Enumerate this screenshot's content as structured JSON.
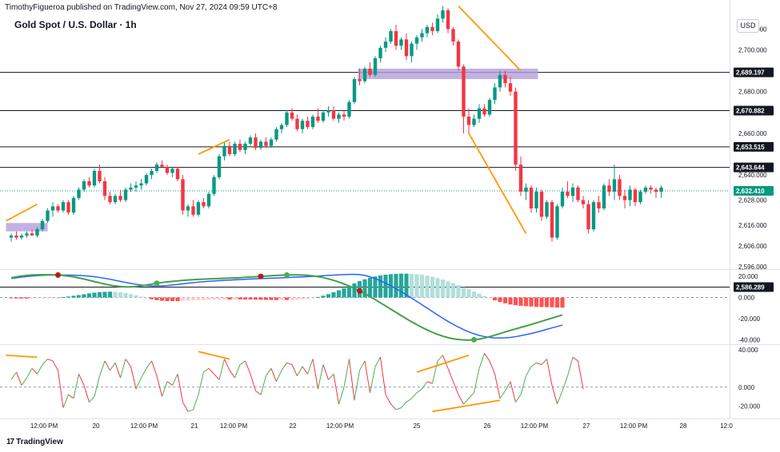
{
  "header": {
    "attribution": "TimothyFigueroa published on TradingView.com, Nov 27, 2024 09:59 UTC+8",
    "symbol_title": "Gold Spot / U.S. Dollar · 1h",
    "currency": "USD"
  },
  "footer": {
    "logo_text": "TradingView",
    "logo_mark": "17"
  },
  "colors": {
    "up": "#089981",
    "down": "#f23645",
    "orange": "#ff9800",
    "zone": "#b39ddb",
    "macd_fast": "#2962ff",
    "macd_slow": "#43a047",
    "macd_slow_down": "#b71c1c",
    "rsi_up": "#4caf50",
    "rsi_down": "#f23645"
  },
  "chart_data": [
    {
      "type": "candlestick",
      "title": "Gold Spot / U.S. Dollar · 1h",
      "ylim": [
        2588,
        2722
      ],
      "x_ticks": [
        "12:00 PM",
        "20",
        "12:00 PM",
        "21",
        "12:00 PM",
        "22",
        "12:00 PM",
        "25",
        "26",
        "12:00 PM",
        "27",
        "12:00 PM",
        "28",
        "12:0"
      ],
      "y_ticks": [
        "2,710.000",
        "2,700.000",
        "2,680.000",
        "2,660.000",
        "2,640.000",
        "2,628.000",
        "2,616.000",
        "2,606.000",
        "2,596.000"
      ],
      "horizontal_levels": [
        "2,689.197",
        "2,670.882",
        "2,653.515",
        "2,643.644",
        "2,586.289"
      ],
      "last_price": "2,632.410",
      "ohlc": [
        [
          2610,
          2612,
          2608,
          2611
        ],
        [
          2611,
          2613,
          2609,
          2610
        ],
        [
          2610,
          2612,
          2609,
          2611
        ],
        [
          2611,
          2613,
          2610,
          2612
        ],
        [
          2612,
          2614,
          2611,
          2611
        ],
        [
          2611,
          2615,
          2610,
          2614
        ],
        [
          2614,
          2619,
          2613,
          2618
        ],
        [
          2618,
          2624,
          2617,
          2623
        ],
        [
          2623,
          2627,
          2620,
          2625
        ],
        [
          2625,
          2626,
          2622,
          2623
        ],
        [
          2623,
          2628,
          2622,
          2627
        ],
        [
          2627,
          2628,
          2621,
          2622
        ],
        [
          2622,
          2630,
          2621,
          2629
        ],
        [
          2629,
          2634,
          2628,
          2633
        ],
        [
          2633,
          2638,
          2632,
          2637
        ],
        [
          2637,
          2639,
          2634,
          2635
        ],
        [
          2635,
          2643,
          2634,
          2642
        ],
        [
          2642,
          2645,
          2636,
          2637
        ],
        [
          2637,
          2639,
          2628,
          2630
        ],
        [
          2630,
          2632,
          2626,
          2627
        ],
        [
          2627,
          2631,
          2626,
          2630
        ],
        [
          2630,
          2633,
          2627,
          2628
        ],
        [
          2628,
          2634,
          2627,
          2633
        ],
        [
          2633,
          2636,
          2632,
          2634
        ],
        [
          2634,
          2637,
          2632,
          2635
        ],
        [
          2635,
          2638,
          2633,
          2636
        ],
        [
          2636,
          2641,
          2635,
          2640
        ],
        [
          2640,
          2643,
          2638,
          2642
        ],
        [
          2642,
          2646,
          2641,
          2645
        ],
        [
          2645,
          2647,
          2644,
          2644
        ],
        [
          2644,
          2645,
          2640,
          2641
        ],
        [
          2641,
          2644,
          2639,
          2643
        ],
        [
          2643,
          2644,
          2637,
          2638
        ],
        [
          2638,
          2640,
          2621,
          2623
        ],
        [
          2623,
          2626,
          2620,
          2625
        ],
        [
          2625,
          2628,
          2620,
          2621
        ],
        [
          2621,
          2628,
          2620,
          2627
        ],
        [
          2627,
          2629,
          2624,
          2625
        ],
        [
          2625,
          2632,
          2624,
          2631
        ],
        [
          2631,
          2640,
          2630,
          2639
        ],
        [
          2639,
          2650,
          2638,
          2649
        ],
        [
          2649,
          2656,
          2647,
          2654
        ],
        [
          2654,
          2656,
          2649,
          2650
        ],
        [
          2650,
          2656,
          2649,
          2655
        ],
        [
          2655,
          2657,
          2651,
          2652
        ],
        [
          2652,
          2656,
          2650,
          2655
        ],
        [
          2655,
          2659,
          2654,
          2658
        ],
        [
          2658,
          2660,
          2652,
          2653
        ],
        [
          2653,
          2657,
          2652,
          2656
        ],
        [
          2656,
          2658,
          2653,
          2654
        ],
        [
          2654,
          2658,
          2653,
          2657
        ],
        [
          2657,
          2663,
          2656,
          2662
        ],
        [
          2662,
          2665,
          2660,
          2664
        ],
        [
          2664,
          2671,
          2663,
          2670
        ],
        [
          2670,
          2672,
          2666,
          2667
        ],
        [
          2667,
          2669,
          2661,
          2662
        ],
        [
          2662,
          2667,
          2660,
          2666
        ],
        [
          2666,
          2668,
          2662,
          2663
        ],
        [
          2663,
          2669,
          2662,
          2668
        ],
        [
          2668,
          2672,
          2665,
          2666
        ],
        [
          2666,
          2671,
          2665,
          2670
        ],
        [
          2670,
          2673,
          2668,
          2671
        ],
        [
          2671,
          2673,
          2666,
          2667
        ],
        [
          2667,
          2670,
          2665,
          2669
        ],
        [
          2669,
          2671,
          2666,
          2668
        ],
        [
          2668,
          2676,
          2667,
          2675
        ],
        [
          2675,
          2687,
          2674,
          2686
        ],
        [
          2686,
          2691,
          2683,
          2685
        ],
        [
          2685,
          2692,
          2684,
          2691
        ],
        [
          2691,
          2694,
          2687,
          2688
        ],
        [
          2688,
          2697,
          2687,
          2696
        ],
        [
          2696,
          2702,
          2694,
          2701
        ],
        [
          2701,
          2706,
          2699,
          2704
        ],
        [
          2704,
          2710,
          2703,
          2709
        ],
        [
          2709,
          2712,
          2700,
          2702
        ],
        [
          2702,
          2706,
          2700,
          2705
        ],
        [
          2705,
          2708,
          2695,
          2697
        ],
        [
          2697,
          2704,
          2694,
          2703
        ],
        [
          2703,
          2707,
          2700,
          2706
        ],
        [
          2706,
          2710,
          2704,
          2708
        ],
        [
          2708,
          2712,
          2706,
          2711
        ],
        [
          2711,
          2713,
          2707,
          2709
        ],
        [
          2709,
          2717,
          2708,
          2715
        ],
        [
          2715,
          2721,
          2713,
          2719
        ],
        [
          2719,
          2720,
          2708,
          2710
        ],
        [
          2710,
          2711,
          2702,
          2704
        ],
        [
          2704,
          2705,
          2690,
          2692
        ],
        [
          2692,
          2693,
          2660,
          2668
        ],
        [
          2668,
          2672,
          2660,
          2664
        ],
        [
          2664,
          2669,
          2663,
          2667
        ],
        [
          2667,
          2674,
          2665,
          2672
        ],
        [
          2672,
          2674,
          2668,
          2669
        ],
        [
          2669,
          2677,
          2668,
          2676
        ],
        [
          2676,
          2684,
          2674,
          2682
        ],
        [
          2682,
          2690,
          2680,
          2688
        ],
        [
          2688,
          2690,
          2682,
          2684
        ],
        [
          2684,
          2687,
          2678,
          2680
        ],
        [
          2680,
          2682,
          2642,
          2645
        ],
        [
          2645,
          2649,
          2630,
          2632
        ],
        [
          2632,
          2636,
          2628,
          2634
        ],
        [
          2634,
          2635,
          2622,
          2624
        ],
        [
          2624,
          2634,
          2622,
          2632
        ],
        [
          2632,
          2633,
          2618,
          2620
        ],
        [
          2620,
          2628,
          2619,
          2627
        ],
        [
          2627,
          2628,
          2608,
          2610
        ],
        [
          2610,
          2626,
          2609,
          2625
        ],
        [
          2625,
          2634,
          2624,
          2632
        ],
        [
          2632,
          2637,
          2629,
          2630
        ],
        [
          2630,
          2636,
          2627,
          2634
        ],
        [
          2634,
          2635,
          2627,
          2628
        ],
        [
          2628,
          2630,
          2624,
          2626
        ],
        [
          2626,
          2628,
          2612,
          2614
        ],
        [
          2614,
          2628,
          2613,
          2627
        ],
        [
          2627,
          2630,
          2622,
          2624
        ],
        [
          2624,
          2636,
          2623,
          2635
        ],
        [
          2635,
          2638,
          2630,
          2632
        ],
        [
          2632,
          2645,
          2628,
          2638
        ],
        [
          2638,
          2640,
          2628,
          2630
        ],
        [
          2630,
          2633,
          2624,
          2628
        ],
        [
          2628,
          2635,
          2625,
          2633
        ],
        [
          2633,
          2634,
          2625,
          2627
        ],
        [
          2627,
          2633,
          2626,
          2632
        ],
        [
          2632,
          2635,
          2631,
          2634
        ],
        [
          2634,
          2635,
          2631,
          2633
        ],
        [
          2633,
          2634,
          2629,
          2632
        ],
        [
          2632,
          2635,
          2629,
          2634
        ]
      ]
    },
    {
      "type": "macd",
      "y_ticks": [
        "20.000",
        "0.000",
        "-20.000",
        "-40.000"
      ],
      "ylim": [
        -44,
        26
      ],
      "fast": [
        18,
        18.6,
        19.2,
        19.8,
        20.3,
        20.6,
        20.9,
        21.1,
        21.2,
        21.2,
        21.2,
        21.1,
        21,
        20.8,
        20.5,
        20.1,
        19.6,
        18.9,
        18.1,
        17.2,
        16.2,
        15.2,
        14.2,
        13.3,
        12.5,
        11.8,
        11.3,
        11,
        10.9,
        11,
        11.3,
        11.8,
        12.3,
        12.9,
        13.5,
        14,
        14.5,
        14.9,
        15.3,
        15.6,
        15.9,
        16.2,
        16.4,
        16.7,
        16.9,
        17.2,
        17.4,
        17.6,
        17.8,
        18,
        18.2,
        18.4,
        18.6,
        18.8,
        19,
        19.2,
        19.4,
        19.7,
        19.9,
        20.2,
        20.5,
        20.8,
        21.1,
        21.4,
        21.6,
        21.8,
        21.9,
        21.6,
        20.8,
        19.5,
        17.8,
        15.8,
        13.5,
        11,
        8.3,
        5.5,
        2.5,
        -0.5,
        -3.6,
        -6.8,
        -10,
        -13.2,
        -16.4,
        -19.5,
        -22.5,
        -25.3,
        -27.9,
        -30.3,
        -32.4,
        -34.2,
        -35.7,
        -36.8,
        -37.6,
        -38.1,
        -38.2,
        -38,
        -37.6,
        -36.9,
        -36,
        -35,
        -33.9,
        -32.7,
        -31.4,
        -30,
        -28.6,
        -27.3,
        -26
      ],
      "slow": [
        18.5,
        19.5,
        20.2,
        20.8,
        21.2,
        21.4,
        21.5,
        21.5,
        21.4,
        21.2,
        20.8,
        20.2,
        19.4,
        18.5,
        17.4,
        16.2,
        15,
        13.8,
        12.7,
        11.7,
        10.9,
        10.3,
        10,
        10,
        10.4,
        11,
        11.8,
        12.6,
        13.4,
        14.1,
        14.7,
        15.2,
        15.7,
        16.1,
        16.5,
        16.8,
        17.1,
        17.3,
        17.5,
        17.7,
        17.9,
        18.1,
        18.3,
        18.5,
        18.7,
        19,
        19.3,
        19.6,
        19.9,
        20.2,
        20.5,
        20.8,
        21,
        21.2,
        21.3,
        21.3,
        21.2,
        20.9,
        20.4,
        19.7,
        18.8,
        17.6,
        16.2,
        14.6,
        12.8,
        10.8,
        8.6,
        6.2,
        3.6,
        0.9,
        -2,
        -5,
        -8,
        -11,
        -14,
        -17,
        -20,
        -22.9,
        -25.6,
        -28.2,
        -30.6,
        -32.8,
        -34.7,
        -36.4,
        -37.8,
        -38.9,
        -39.6,
        -40,
        -40.1,
        -39.8,
        -39.2,
        -38.2,
        -36.9,
        -35.5,
        -34,
        -32.5,
        -31,
        -29.6,
        -28.2,
        -26.8,
        -25.4,
        -23.9,
        -22.4,
        -20.9,
        -19.4,
        -17.9,
        -16.4
      ],
      "markers": [
        {
          "i": 9,
          "kind": "bear"
        },
        {
          "i": 28,
          "kind": "bull"
        },
        {
          "i": 48,
          "kind": "bear"
        },
        {
          "i": 53,
          "kind": "bull"
        },
        {
          "i": 67,
          "kind": "bear"
        },
        {
          "i": 89,
          "kind": "bull"
        }
      ]
    },
    {
      "type": "oscillator",
      "y_ticks": [
        "40.000",
        "0.000",
        "-20.000"
      ],
      "ylim": [
        -30,
        45
      ],
      "values": [
        8,
        16,
        2,
        10,
        20,
        14,
        24,
        30,
        28,
        18,
        -22,
        -8,
        -12,
        14,
        2,
        -16,
        -10,
        12,
        28,
        18,
        26,
        10,
        30,
        22,
        -2,
        10,
        20,
        28,
        12,
        -10,
        6,
        2,
        14,
        -16,
        -26,
        -24,
        -8,
        16,
        20,
        14,
        8,
        30,
        18,
        10,
        24,
        28,
        14,
        -4,
        -8,
        12,
        20,
        6,
        18,
        26,
        24,
        12,
        22,
        14,
        30,
        -2,
        24,
        8,
        14,
        -18,
        0,
        30,
        -14,
        18,
        28,
        -6,
        22,
        32,
        -8,
        -18,
        -24,
        -22,
        -16,
        -12,
        -6,
        -2,
        6,
        4,
        28,
        34,
        20,
        6,
        -8,
        -18,
        -12,
        -6,
        20,
        36,
        28,
        14,
        -12,
        -4,
        6,
        -16,
        -8,
        12,
        22,
        26,
        24,
        30,
        2,
        -18,
        -4,
        12,
        32,
        28,
        -2
      ],
      "lines": [
        "0.000"
      ]
    }
  ]
}
